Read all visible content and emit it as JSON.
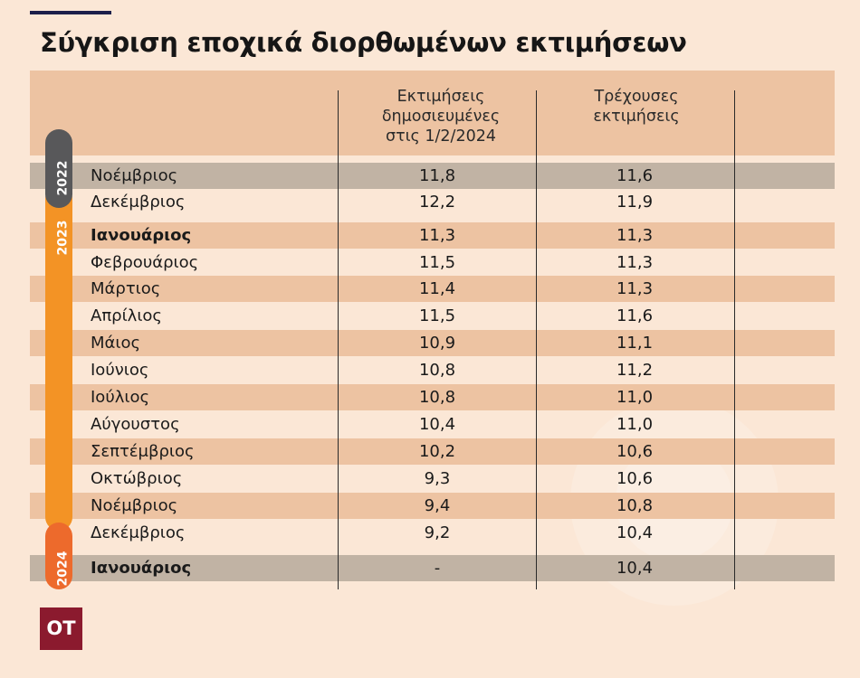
{
  "title": "Σύγκριση εποχικά διορθωμένων εκτιμήσεων",
  "chart_data": {
    "type": "table",
    "columns": [
      {
        "lines": [
          "Εκτιμήσεις",
          "δημοσιευμένες",
          "στις 1/2/2024"
        ]
      },
      {
        "lines": [
          "Τρέχουσες",
          "εκτιμήσεις"
        ]
      }
    ],
    "years": [
      "2022",
      "2023",
      "2024"
    ],
    "rows": [
      {
        "month": "Νοέμβριος",
        "published": "11,8",
        "current": "11,6"
      },
      {
        "month": "Δεκέμβριος",
        "published": "12,2",
        "current": "11,9"
      },
      {
        "month": "Ιανουάριος",
        "published": "11,3",
        "current": "11,3"
      },
      {
        "month": "Φεβρουάριος",
        "published": "11,5",
        "current": "11,3"
      },
      {
        "month": "Μάρτιος",
        "published": "11,4",
        "current": "11,3"
      },
      {
        "month": "Απρίλιος",
        "published": "11,5",
        "current": "11,6"
      },
      {
        "month": "Μάιος",
        "published": "10,9",
        "current": "11,1"
      },
      {
        "month": "Ιούνιος",
        "published": "10,8",
        "current": "11,2"
      },
      {
        "month": "Ιούλιος",
        "published": "10,8",
        "current": "11,0"
      },
      {
        "month": "Αύγουστος",
        "published": "10,4",
        "current": "11,0"
      },
      {
        "month": "Σεπτέμβριος",
        "published": "10,2",
        "current": "10,6"
      },
      {
        "month": "Οκτώβριος",
        "published": "9,3",
        "current": "10,6"
      },
      {
        "month": "Νοέμβριος",
        "published": "9,4",
        "current": "10,8"
      },
      {
        "month": "Δεκέμβριος",
        "published": "9,2",
        "current": "10,4"
      },
      {
        "month": "Ιανουάριος",
        "published": "-",
        "current": "10,4"
      }
    ]
  },
  "logo": "OT",
  "colors": {
    "background": "#fbe7d6",
    "band": "#edc3a2",
    "highlight_band": "#c1b3a4",
    "year_2022": "#58585a",
    "year_2023": "#f39325",
    "year_2024": "#ed6a2c",
    "logo": "#8b1a2e"
  }
}
